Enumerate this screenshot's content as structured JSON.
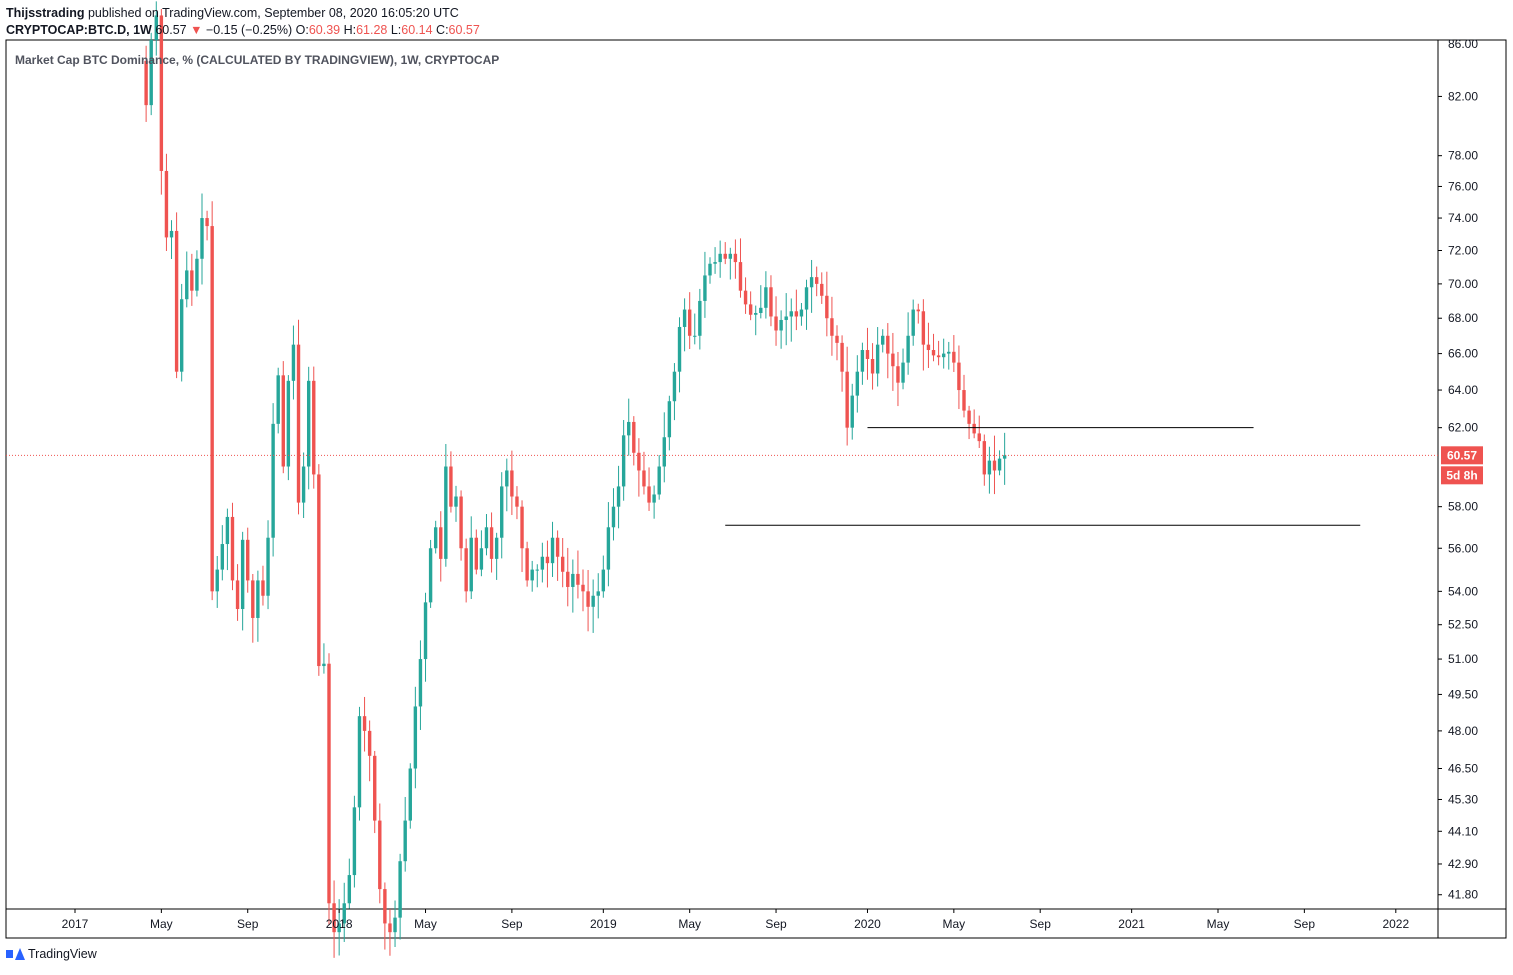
{
  "header": {
    "author": "Thijsstrading",
    "published_text": "published on TradingView.com, September 08, 2020 16:05:20 UTC",
    "symbol": "CRYPTOCAP:BTC.D, 1W",
    "last": "60.57",
    "change_arrow": "▼",
    "change": "−0.15 (−0.25%)",
    "o_label": "O:",
    "o_value": "60.39",
    "h_label": "H:",
    "h_value": "61.28",
    "l_label": "L:",
    "l_value": "60.14",
    "c_label": "C:",
    "c_value": "60.57"
  },
  "footer": {
    "brand": "TradingView"
  },
  "colors": {
    "up": "#26a69a",
    "down": "#ef5350",
    "grid": "#000000",
    "text": "#131722"
  },
  "chart_data": {
    "type": "candlestick",
    "title": "Market Cap BTC Dominance, % (CALCULATED BY TRADINGVIEW), 1W, CRYPTOCAP",
    "x_ticks": [
      {
        "label": "2017",
        "t": 0
      },
      {
        "label": "May",
        "t": 17
      },
      {
        "label": "Sep",
        "t": 34
      },
      {
        "label": "2018",
        "t": 52
      },
      {
        "label": "May",
        "t": 69
      },
      {
        "label": "Sep",
        "t": 86
      },
      {
        "label": "2019",
        "t": 104
      },
      {
        "label": "May",
        "t": 121
      },
      {
        "label": "Sep",
        "t": 138
      },
      {
        "label": "2020",
        "t": 156
      },
      {
        "label": "May",
        "t": 173
      },
      {
        "label": "Sep",
        "t": 190
      },
      {
        "label": "2021",
        "t": 208
      },
      {
        "label": "May",
        "t": 225
      },
      {
        "label": "Sep",
        "t": 242
      },
      {
        "label": "2022",
        "t": 260
      }
    ],
    "y_ticks": [
      82,
      78,
      76,
      74,
      72,
      70,
      68,
      66,
      64,
      62,
      58,
      56,
      54,
      52.5,
      51,
      49.5,
      48,
      46.5,
      45.3,
      44.1,
      42.9,
      41.8
    ],
    "y_tick_labels": [
      "82.00",
      "78.00",
      "76.00",
      "74.00",
      "72.00",
      "70.00",
      "68.00",
      "66.00",
      "64.00",
      "62.00",
      "58.00",
      "56.00",
      "54.00",
      "52.50",
      "51.00",
      "49.50",
      "48.00",
      "46.50",
      "45.30",
      "44.10",
      "42.90",
      "41.80"
    ],
    "y_scale": "log",
    "y_range": [
      41.3,
      86.0
    ],
    "top_partial_label": "86.00",
    "last_price": {
      "value": 60.57,
      "label": "60.57",
      "countdown": "5d 8h"
    },
    "horizontal_lines": [
      {
        "value": 62.0,
        "t_start": 156,
        "t_end": 232
      },
      {
        "value": 57.1,
        "t_start": 128,
        "t_end": 253
      }
    ],
    "close_series": [
      84.5,
      81.4,
      86.0,
      87.8,
      77.0,
      72.8,
      73.2,
      65.0,
      69.1,
      70.8,
      69.6,
      71.5,
      74.0,
      73.5,
      54.0,
      55.0,
      56.2,
      57.5,
      54.5,
      53.2,
      56.4,
      54.5,
      52.8,
      54.5,
      53.8,
      56.5,
      62.2,
      64.8,
      60.0,
      64.5,
      66.5,
      58.2,
      60.0,
      64.5,
      59.6,
      50.7,
      50.8,
      41.5,
      40.5,
      40.8,
      41.5,
      42.5,
      45.0,
      48.6,
      48.0,
      47.0,
      44.5,
      42.0,
      40.8,
      40.5,
      41.0,
      43.0,
      44.5,
      46.5,
      49.0,
      51.0,
      53.5,
      56.0,
      57.0,
      55.5,
      60.0,
      58.0,
      58.5,
      56.0,
      54.0,
      56.5,
      55.0,
      56.0,
      57.0,
      55.5,
      56.5,
      59.0,
      59.8,
      58.5,
      58.0,
      56.0,
      54.5,
      55.0,
      55.0,
      55.6,
      55.3,
      56.5,
      55.6,
      54.9,
      54.2,
      54.8,
      54.3,
      54.0,
      53.3,
      53.8,
      54.0,
      55.0,
      57.0,
      58.0,
      59.0,
      61.6,
      62.3,
      60.7,
      59.8,
      59.0,
      58.2,
      58.6,
      60.0,
      61.5,
      63.4,
      65.0,
      67.5,
      68.5,
      67.0,
      67.0,
      69.0,
      70.5,
      71.2,
      71.3,
      71.8,
      71.5,
      71.8,
      71.3,
      69.6,
      68.8,
      68.2,
      68.3,
      68.6,
      69.8,
      68.1,
      67.3,
      67.9,
      68.1,
      68.4,
      68.1,
      68.5,
      69.8,
      70.4,
      70.0,
      69.3,
      68.0,
      67.0,
      66.6,
      65.0,
      62.0,
      63.7,
      65.0,
      66.2,
      65.7,
      64.9,
      66.5,
      67.0,
      66.0,
      65.3,
      64.4,
      65.5,
      67.0,
      68.5,
      68.4,
      66.5,
      66.2,
      65.9,
      65.8,
      66.0,
      66.1,
      65.5,
      64.0,
      62.9,
      62.2,
      61.7,
      61.3,
      59.6,
      60.3,
      59.8,
      60.4,
      60.57
    ]
  }
}
